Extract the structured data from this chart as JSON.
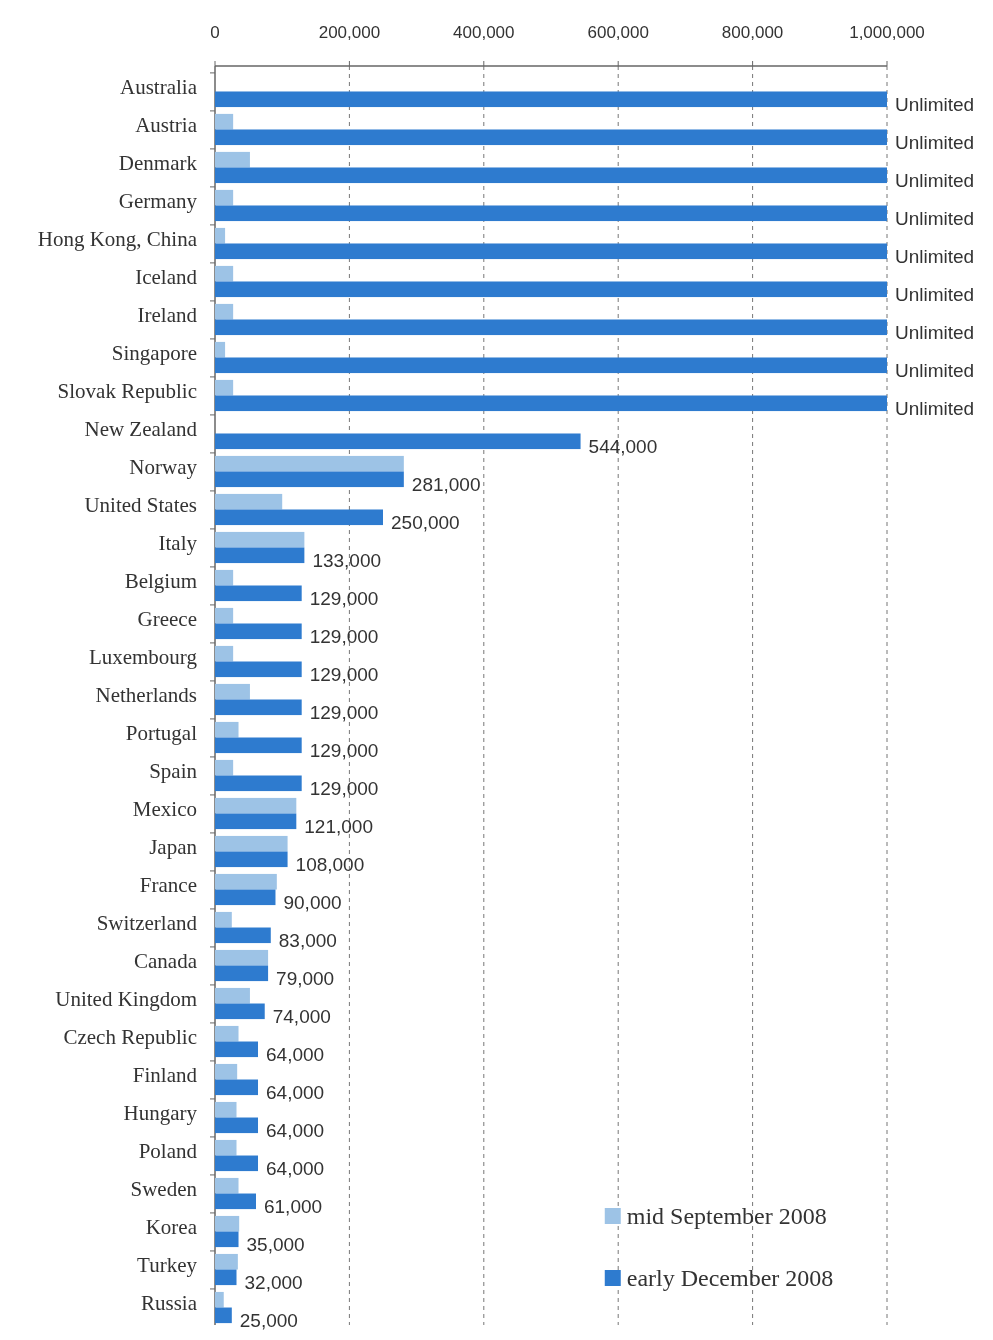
{
  "chart_data": {
    "type": "bar",
    "orientation": "horizontal",
    "categories": [
      "Australia",
      "Austria",
      "Denmark",
      "Germany",
      "Hong Kong, China",
      "Iceland",
      "Ireland",
      "Singapore",
      "Slovak Republic",
      "New Zealand",
      "Norway",
      "United States",
      "Italy",
      "Belgium",
      "Greece",
      "Luxembourg",
      "Netherlands",
      "Portugal",
      "Spain",
      "Mexico",
      "Japan",
      "France",
      "Switzerland",
      "Canada",
      "United Kingdom",
      "Czech Republic",
      "Finland",
      "Hungary",
      "Poland",
      "Sweden",
      "Korea",
      "Turkey",
      "Russia"
    ],
    "series": [
      {
        "name": "mid September 2008",
        "color": "#9dc3e6",
        "values": [
          null,
          27000,
          52000,
          27000,
          15000,
          27000,
          27000,
          15000,
          27000,
          null,
          281000,
          100000,
          133000,
          27000,
          27000,
          27000,
          52000,
          35000,
          27000,
          121000,
          108000,
          92000,
          25000,
          79000,
          52000,
          35000,
          33000,
          32000,
          32000,
          35000,
          36000,
          34000,
          13000
        ]
      },
      {
        "name": "early December 2008",
        "color": "#2e7bcf",
        "values": [
          1000000,
          1000000,
          1000000,
          1000000,
          1000000,
          1000000,
          1000000,
          1000000,
          1000000,
          544000,
          281000,
          250000,
          133000,
          129000,
          129000,
          129000,
          129000,
          129000,
          129000,
          121000,
          108000,
          90000,
          83000,
          79000,
          74000,
          64000,
          64000,
          64000,
          64000,
          61000,
          35000,
          32000,
          25000
        ],
        "value_labels": [
          "Unlimited",
          "Unlimited",
          "Unlimited",
          "Unlimited",
          "Unlimited",
          "Unlimited",
          "Unlimited",
          "Unlimited",
          "Unlimited",
          "544,000",
          "281,000",
          "250,000",
          "133,000",
          "129,000",
          "129,000",
          "129,000",
          "129,000",
          "129,000",
          "129,000",
          "121,000",
          "108,000",
          "90,000",
          "83,000",
          "79,000",
          "74,000",
          "64,000",
          "64,000",
          "64,000",
          "64,000",
          "61,000",
          "35,000",
          "32,000",
          "25,000"
        ]
      }
    ],
    "xlim": [
      0,
      1000000
    ],
    "xticks": [
      0,
      {
        "value": 200000,
        "label": "200,000"
      },
      {
        "value": 400000,
        "label": "400,000"
      },
      {
        "value": 600000,
        "label": "600,000"
      },
      {
        "value": 800000,
        "label": "800,000"
      },
      {
        "value": 1000000,
        "label": "1,000,000"
      }
    ],
    "grid": "x",
    "legend": "bottom right"
  }
}
